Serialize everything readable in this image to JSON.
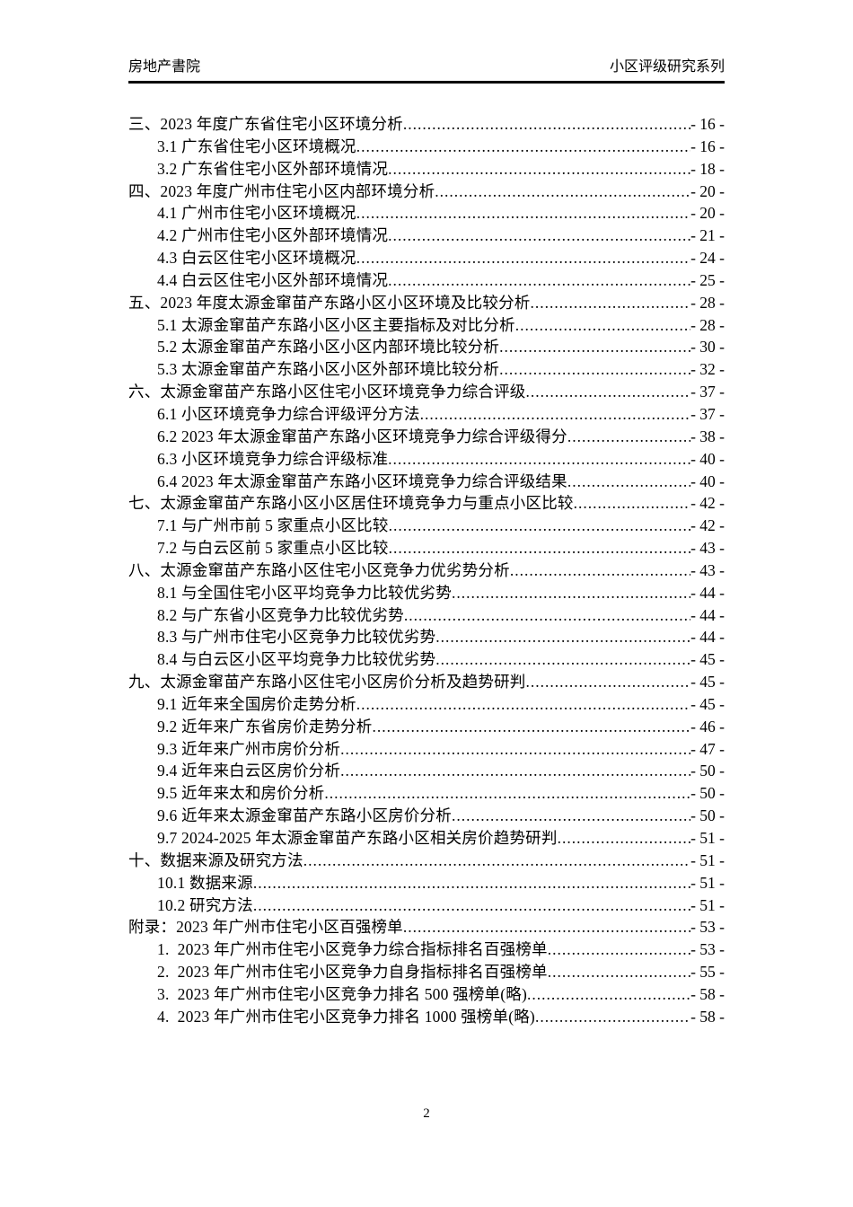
{
  "header": {
    "left": "房地产書院",
    "right": "小区评级研究系列"
  },
  "footer": {
    "page_number": "2"
  },
  "toc": {
    "items": [
      {
        "level": 1,
        "label": "三、2023 年度广东省住宅小区环境分析",
        "page": "- 16 -"
      },
      {
        "level": 2,
        "label": "3.1 广东省住宅小区环境概况",
        "page": "- 16 -"
      },
      {
        "level": 2,
        "label": "3.2 广东省住宅小区外部环境情况",
        "page": "- 18 -"
      },
      {
        "level": 1,
        "label": "四、2023 年度广州市住宅小区内部环境分析",
        "page": "- 20 -"
      },
      {
        "level": 2,
        "label": "4.1 广州市住宅小区环境概况",
        "page": "- 20 -"
      },
      {
        "level": 2,
        "label": "4.2 广州市住宅小区外部环境情况",
        "page": "- 21 -"
      },
      {
        "level": 2,
        "label": "4.3 白云区住宅小区环境概况",
        "page": "- 24 -"
      },
      {
        "level": 2,
        "label": "4.4 白云区住宅小区外部环境情况",
        "page": "- 25 -"
      },
      {
        "level": 1,
        "label": "五、2023 年度太源金窜苗产东路小区小区环境及比较分析",
        "page": "- 28 -"
      },
      {
        "level": 2,
        "label": "5.1 太源金窜苗产东路小区小区主要指标及对比分析",
        "page": "- 28 -"
      },
      {
        "level": 2,
        "label": "5.2 太源金窜苗产东路小区小区内部环境比较分析",
        "page": "- 30 -"
      },
      {
        "level": 2,
        "label": "5.3 太源金窜苗产东路小区小区外部环境比较分析",
        "page": "- 32 -"
      },
      {
        "level": 1,
        "label": "六、太源金窜苗产东路小区住宅小区环境竞争力综合评级",
        "page": "- 37 -"
      },
      {
        "level": 2,
        "label": "6.1 小区环境竞争力综合评级评分方法",
        "page": "- 37 -"
      },
      {
        "level": 2,
        "label": "6.2 2023 年太源金窜苗产东路小区环境竞争力综合评级得分",
        "page": "- 38 -"
      },
      {
        "level": 2,
        "label": "6.3 小区环境竞争力综合评级标准",
        "page": "- 40 -"
      },
      {
        "level": 2,
        "label": "6.4 2023 年太源金窜苗产东路小区环境竞争力综合评级结果",
        "page": "- 40 -"
      },
      {
        "level": 1,
        "label": "七、太源金窜苗产东路小区小区居住环境竞争力与重点小区比较",
        "page": "- 42 -"
      },
      {
        "level": 2,
        "label": "7.1 与广州市前 5 家重点小区比较",
        "page": "- 42 -"
      },
      {
        "level": 2,
        "label": "7.2 与白云区前 5 家重点小区比较",
        "page": "- 43 -"
      },
      {
        "level": 1,
        "label": "八、太源金窜苗产东路小区住宅小区竞争力优劣势分析",
        "page": "- 43 -"
      },
      {
        "level": 2,
        "label": "8.1 与全国住宅小区平均竞争力比较优劣势",
        "page": "- 44 -"
      },
      {
        "level": 2,
        "label": "8.2 与广东省小区竞争力比较优劣势",
        "page": "- 44 -"
      },
      {
        "level": 2,
        "label": "8.3 与广州市住宅小区竞争力比较优劣势",
        "page": "- 44 -"
      },
      {
        "level": 2,
        "label": "8.4 与白云区小区平均竞争力比较优劣势",
        "page": "- 45 -"
      },
      {
        "level": 1,
        "label": "九、太源金窜苗产东路小区住宅小区房价分析及趋势研判",
        "page": "- 45 -"
      },
      {
        "level": 2,
        "label": "9.1 近年来全国房价走势分析",
        "page": "- 45 -"
      },
      {
        "level": 2,
        "label": "9.2 近年来广东省房价走势分析",
        "page": "- 46 -"
      },
      {
        "level": 2,
        "label": "9.3 近年来广州市房价分析",
        "page": "- 47 -"
      },
      {
        "level": 2,
        "label": "9.4 近年来白云区房价分析",
        "page": "- 50 -"
      },
      {
        "level": 2,
        "label": "9.5 近年来太和房价分析",
        "page": "- 50 -"
      },
      {
        "level": 2,
        "label": "9.6 近年来太源金窜苗产东路小区房价分析",
        "page": "- 50 -"
      },
      {
        "level": 2,
        "label": "9.7 2024-2025 年太源金窜苗产东路小区相关房价趋势研判",
        "page": "- 51 -"
      },
      {
        "level": 1,
        "label": "十、数据来源及研究方法",
        "page": "- 51 -"
      },
      {
        "level": 2,
        "label": "10.1 数据来源",
        "page": "- 51 -"
      },
      {
        "level": 2,
        "label": "10.2 研究方法",
        "page": "- 51 -"
      },
      {
        "level": 1,
        "label": "附录：2023 年广州市住宅小区百强榜单",
        "page": "- 53 -"
      },
      {
        "level": 2,
        "label": "1.  2023 年广州市住宅小区竞争力综合指标排名百强榜单",
        "page": "- 53 -"
      },
      {
        "level": 2,
        "label": "2.  2023 年广州市住宅小区竞争力自身指标排名百强榜单",
        "page": "- 55 -"
      },
      {
        "level": 2,
        "label": "3.  2023 年广州市住宅小区竞争力排名 500 强榜单(略)",
        "page": "- 58 -"
      },
      {
        "level": 2,
        "label": "4.  2023 年广州市住宅小区竞争力排名 1000 强榜单(略)",
        "page": "- 58 -"
      }
    ]
  }
}
